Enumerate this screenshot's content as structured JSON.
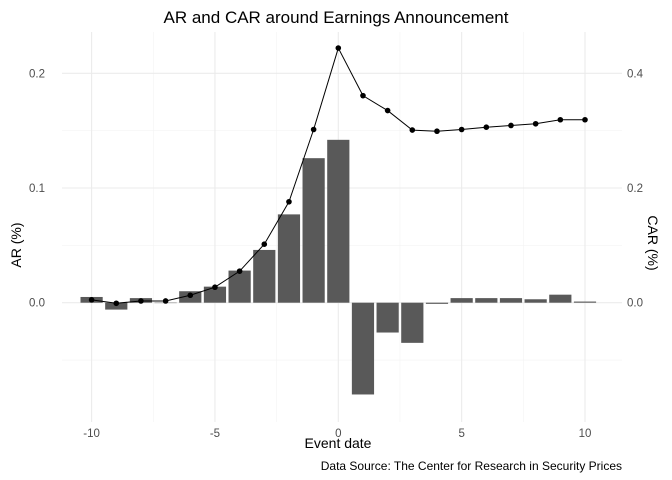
{
  "chart_data": {
    "type": "bar+line",
    "title": "AR and CAR around Earnings Announcement",
    "xlabel": "Event date",
    "ylabel": "AR (%)",
    "y2label": "CAR (%)",
    "caption": "Data Source: The Center for Research in Security Prices",
    "x": [
      -10,
      -9,
      -8,
      -7,
      -6,
      -5,
      -4,
      -3,
      -2,
      -1,
      0,
      1,
      2,
      3,
      4,
      5,
      6,
      7,
      8,
      9,
      10
    ],
    "xlim": [
      -11.2,
      11.5
    ],
    "ylim": [
      -0.104,
      0.236
    ],
    "y2lim": [
      -0.208,
      0.472
    ],
    "x_ticks": [
      -10,
      -5,
      0,
      5,
      10
    ],
    "y_ticks": [
      0.0,
      0.1,
      0.2
    ],
    "y2_ticks": [
      0.0,
      0.2,
      0.4
    ],
    "x_tick_labels": [
      "-10",
      "-5",
      "0",
      "5",
      "10"
    ],
    "y_tick_labels": [
      "0.0",
      "0.1",
      "0.2"
    ],
    "y2_tick_labels": [
      "0.0",
      "0.2",
      "0.4"
    ],
    "grid": true,
    "legend": "none",
    "series": [
      {
        "type": "bar",
        "axis": "left",
        "color": "#595959",
        "values": [
          0.005,
          -0.006,
          0.004,
          0.0,
          0.01,
          0.014,
          0.028,
          0.046,
          0.077,
          0.126,
          0.142,
          -0.08,
          -0.026,
          -0.035,
          -0.001,
          0.004,
          0.004,
          0.004,
          0.003,
          0.007,
          0.001
        ]
      },
      {
        "type": "line",
        "axis": "right",
        "color": "#000000",
        "values": [
          0.005,
          -0.001,
          0.003,
          0.003,
          0.013,
          0.027,
          0.055,
          0.102,
          0.176,
          0.302,
          0.444,
          0.361,
          0.335,
          0.301,
          0.299,
          0.302,
          0.306,
          0.309,
          0.312,
          0.319,
          0.319
        ]
      }
    ]
  }
}
